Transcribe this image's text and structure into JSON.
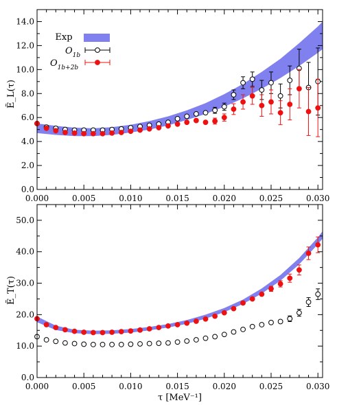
{
  "chart_data": [
    {
      "type": "scatter",
      "ylabel": "Ẽ_L(τ)",
      "xlim": [
        0.0,
        0.0305
      ],
      "ylim": [
        0.0,
        15.0
      ],
      "xticks": [
        0.0,
        0.005,
        0.01,
        0.015,
        0.02,
        0.025,
        0.03
      ],
      "xtick_labels": [
        "0.000",
        "0.005",
        "0.010",
        "0.015",
        "0.020",
        "0.025",
        "0.030"
      ],
      "yticks": [
        0.0,
        2.0,
        4.0,
        6.0,
        8.0,
        10.0,
        12.0,
        14.0
      ],
      "ytick_labels": [
        "0.0",
        "2.0",
        "4.0",
        "6.0",
        "8.0",
        "10.0",
        "12.0",
        "14.0"
      ],
      "legend_position": "top-left",
      "band": {
        "name": "Exp",
        "color": "#8080ee",
        "x": [
          0.0,
          0.002,
          0.004,
          0.006,
          0.008,
          0.01,
          0.012,
          0.014,
          0.016,
          0.018,
          0.02,
          0.022,
          0.024,
          0.026,
          0.028,
          0.03,
          0.0305
        ],
        "lower": [
          4.7,
          4.55,
          4.45,
          4.45,
          4.55,
          4.75,
          5.0,
          5.35,
          5.8,
          6.3,
          6.9,
          7.6,
          8.4,
          9.3,
          10.3,
          11.4,
          11.7
        ],
        "upper": [
          5.5,
          5.3,
          5.15,
          5.1,
          5.2,
          5.4,
          5.7,
          6.1,
          6.6,
          7.2,
          7.95,
          8.8,
          9.8,
          10.9,
          12.2,
          13.6,
          14.0
        ]
      },
      "series": [
        {
          "name": "O_1b",
          "label_main": "O",
          "label_sub": "1b",
          "marker": "open-circle",
          "color": "#000000",
          "x": [
            0.0,
            0.001,
            0.002,
            0.003,
            0.004,
            0.005,
            0.006,
            0.007,
            0.008,
            0.009,
            0.01,
            0.011,
            0.012,
            0.013,
            0.014,
            0.015,
            0.016,
            0.017,
            0.018,
            0.019,
            0.02,
            0.021,
            0.022,
            0.023,
            0.024,
            0.025,
            0.026,
            0.027,
            0.028,
            0.029,
            0.03
          ],
          "y": [
            5.5,
            5.2,
            5.1,
            5.0,
            4.95,
            4.95,
            4.95,
            4.95,
            5.0,
            5.05,
            5.15,
            5.25,
            5.35,
            5.45,
            5.6,
            5.9,
            6.1,
            6.3,
            6.4,
            6.6,
            6.9,
            7.9,
            8.9,
            9.2,
            8.3,
            8.9,
            7.8,
            9.1,
            10.1,
            8.5,
            9.0
          ],
          "err": [
            0.05,
            0.05,
            0.05,
            0.05,
            0.05,
            0.05,
            0.05,
            0.05,
            0.05,
            0.05,
            0.05,
            0.05,
            0.05,
            0.05,
            0.1,
            0.1,
            0.15,
            0.15,
            0.2,
            0.25,
            0.3,
            0.4,
            0.5,
            0.6,
            0.8,
            0.9,
            1.0,
            1.2,
            1.6,
            2.1,
            2.8
          ]
        },
        {
          "name": "O_1b+2b",
          "label_main": "O",
          "label_sub": "1b+2b",
          "marker": "filled-circle",
          "color": "#ee1111",
          "x": [
            0.0,
            0.001,
            0.002,
            0.003,
            0.004,
            0.005,
            0.006,
            0.007,
            0.008,
            0.009,
            0.01,
            0.011,
            0.012,
            0.013,
            0.014,
            0.015,
            0.016,
            0.017,
            0.018,
            0.019,
            0.02,
            0.021,
            0.022,
            0.023,
            0.024,
            0.025,
            0.026,
            0.027,
            0.028,
            0.029,
            0.03
          ],
          "y": [
            5.5,
            5.1,
            4.9,
            4.75,
            4.7,
            4.65,
            4.65,
            4.65,
            4.7,
            4.75,
            4.85,
            4.95,
            5.05,
            5.15,
            5.3,
            5.45,
            5.6,
            5.75,
            5.6,
            5.7,
            6.0,
            6.7,
            7.3,
            7.8,
            7.0,
            7.3,
            6.4,
            7.1,
            8.4,
            6.5,
            6.8
          ],
          "err": [
            0.05,
            0.05,
            0.05,
            0.05,
            0.05,
            0.05,
            0.05,
            0.05,
            0.05,
            0.05,
            0.05,
            0.05,
            0.05,
            0.05,
            0.1,
            0.1,
            0.1,
            0.15,
            0.2,
            0.25,
            0.3,
            0.45,
            0.6,
            0.7,
            0.9,
            1.0,
            1.0,
            1.3,
            1.6,
            2.0,
            2.4
          ]
        }
      ]
    },
    {
      "type": "scatter",
      "ylabel": "Ẽ_T(τ)",
      "xlabel": "τ [MeV⁻¹]",
      "xlim": [
        0.0,
        0.0305
      ],
      "ylim": [
        0.0,
        55.0
      ],
      "xticks": [
        0.0,
        0.005,
        0.01,
        0.015,
        0.02,
        0.025,
        0.03
      ],
      "xtick_labels": [
        "0.000",
        "0.005",
        "0.010",
        "0.015",
        "0.020",
        "0.025",
        "0.030"
      ],
      "yticks": [
        0.0,
        10.0,
        20.0,
        30.0,
        40.0,
        50.0
      ],
      "ytick_labels": [
        "0.0",
        "10.0",
        "20.0",
        "30.0",
        "40.0",
        "50.0"
      ],
      "band": {
        "name": "Exp",
        "color": "#8080ee",
        "x": [
          0.0,
          0.002,
          0.004,
          0.006,
          0.008,
          0.01,
          0.012,
          0.014,
          0.016,
          0.018,
          0.02,
          0.022,
          0.024,
          0.026,
          0.028,
          0.03,
          0.0305
        ],
        "lower": [
          17.6,
          15.1,
          14.1,
          13.8,
          13.9,
          14.3,
          15.0,
          15.9,
          17.1,
          18.7,
          20.8,
          23.4,
          26.7,
          30.8,
          36.0,
          42.4,
          44.2
        ],
        "upper": [
          19.4,
          16.5,
          15.2,
          14.9,
          15.0,
          15.4,
          16.1,
          17.0,
          18.3,
          20.0,
          22.1,
          24.8,
          28.3,
          32.6,
          38.0,
          44.6,
          46.5
        ]
      },
      "series": [
        {
          "name": "O_1b",
          "marker": "open-circle",
          "color": "#000000",
          "x": [
            0.0,
            0.001,
            0.002,
            0.003,
            0.004,
            0.005,
            0.006,
            0.007,
            0.008,
            0.009,
            0.01,
            0.011,
            0.012,
            0.013,
            0.014,
            0.015,
            0.016,
            0.017,
            0.018,
            0.019,
            0.02,
            0.021,
            0.022,
            0.023,
            0.024,
            0.025,
            0.026,
            0.027,
            0.028,
            0.029,
            0.03
          ],
          "y": [
            13.0,
            12.0,
            11.5,
            11.0,
            10.8,
            10.6,
            10.5,
            10.5,
            10.5,
            10.5,
            10.6,
            10.7,
            10.8,
            10.9,
            11.0,
            11.3,
            11.6,
            12.0,
            12.5,
            13.0,
            13.7,
            14.5,
            15.3,
            16.2,
            16.8,
            17.5,
            17.8,
            18.7,
            20.6,
            24.0,
            26.5
          ],
          "err": [
            0.1,
            0.1,
            0.1,
            0.1,
            0.1,
            0.1,
            0.1,
            0.1,
            0.1,
            0.1,
            0.1,
            0.1,
            0.1,
            0.1,
            0.1,
            0.1,
            0.1,
            0.1,
            0.15,
            0.15,
            0.2,
            0.2,
            0.25,
            0.3,
            0.4,
            0.5,
            0.7,
            0.9,
            1.1,
            1.4,
            1.7
          ]
        },
        {
          "name": "O_1b+2b",
          "marker": "filled-circle",
          "color": "#ee1111",
          "x": [
            0.0,
            0.001,
            0.002,
            0.003,
            0.004,
            0.005,
            0.006,
            0.007,
            0.008,
            0.009,
            0.01,
            0.011,
            0.012,
            0.013,
            0.014,
            0.015,
            0.016,
            0.017,
            0.018,
            0.019,
            0.02,
            0.021,
            0.022,
            0.023,
            0.024,
            0.025,
            0.026,
            0.027,
            0.028,
            0.029,
            0.03
          ],
          "y": [
            18.7,
            16.8,
            15.9,
            15.2,
            14.7,
            14.4,
            14.3,
            14.3,
            14.4,
            14.6,
            14.8,
            15.1,
            15.5,
            15.9,
            16.4,
            16.8,
            17.3,
            17.9,
            18.6,
            19.5,
            20.6,
            21.9,
            23.7,
            25.0,
            26.5,
            28.2,
            29.8,
            31.6,
            34.2,
            39.5,
            42.2
          ],
          "err": [
            0.1,
            0.1,
            0.1,
            0.1,
            0.1,
            0.1,
            0.1,
            0.1,
            0.1,
            0.1,
            0.1,
            0.1,
            0.1,
            0.1,
            0.1,
            0.1,
            0.1,
            0.15,
            0.15,
            0.2,
            0.2,
            0.3,
            0.4,
            0.5,
            0.6,
            0.8,
            1.0,
            1.3,
            1.6,
            2.0,
            2.5
          ]
        }
      ]
    }
  ]
}
